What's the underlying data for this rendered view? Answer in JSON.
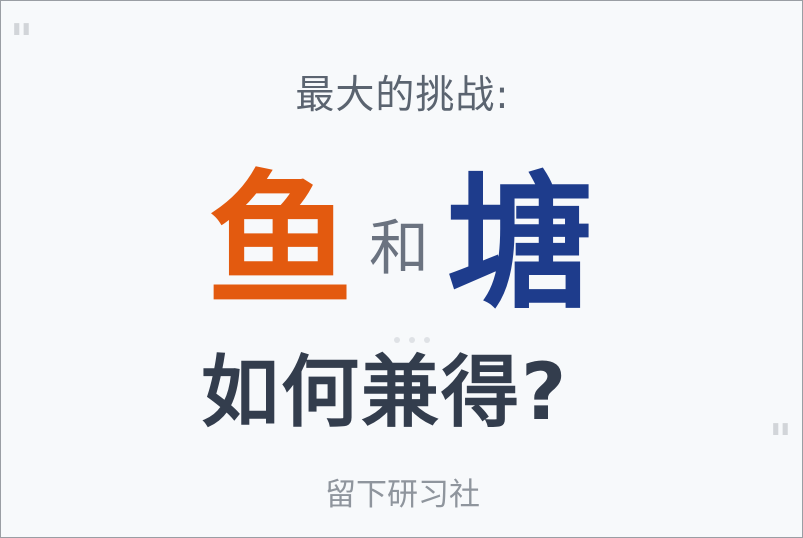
{
  "quotes": {
    "open": "\"",
    "close": "\""
  },
  "heading": "最大的挑战:",
  "highlight": {
    "left": "鱼",
    "joiner": "和",
    "right": "塘"
  },
  "question": "如何兼得?",
  "brand": "留下研习社",
  "colors": {
    "fish": "#e35a0f",
    "pond": "#1e3c8c",
    "question": "#333d4d",
    "heading": "#5b6470",
    "background": "#f7f9fb"
  }
}
